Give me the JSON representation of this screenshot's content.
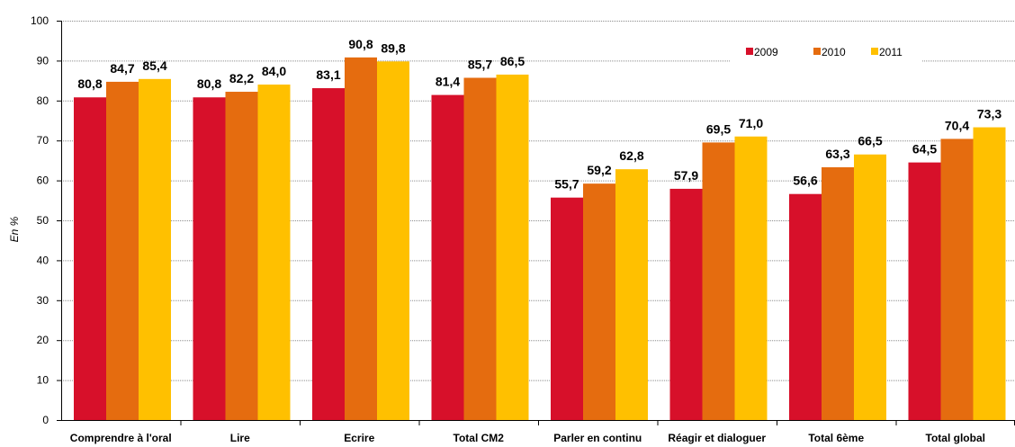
{
  "chart_data": {
    "type": "bar",
    "ylabel": "En %",
    "ylim": [
      0,
      100
    ],
    "yticks": [
      0,
      10,
      20,
      30,
      40,
      50,
      60,
      70,
      80,
      90,
      100
    ],
    "grid": true,
    "legend_position": "top-right",
    "categories": [
      "Comprendre à l'oral",
      "Lire",
      "Ecrire",
      "Total CM2",
      "Parler en continu",
      "Réagir et dialoguer",
      "Total 6ème",
      "Total global"
    ],
    "series": [
      {
        "name": "2009",
        "color": "#d7102a",
        "values": [
          80.8,
          80.8,
          83.1,
          81.4,
          55.7,
          57.9,
          56.6,
          64.5
        ],
        "labels": [
          "80,8",
          "80,8",
          "83,1",
          "81,4",
          "55,7",
          "57,9",
          "56,6",
          "64,5"
        ]
      },
      {
        "name": "2010",
        "color": "#e56c0f",
        "values": [
          84.7,
          82.2,
          90.8,
          85.7,
          59.2,
          69.5,
          63.3,
          70.4
        ],
        "labels": [
          "84,7",
          "82,2",
          "90,8",
          "85,7",
          "59,2",
          "69,5",
          "63,3",
          "70,4"
        ]
      },
      {
        "name": "2011",
        "color": "#ffc000",
        "values": [
          85.4,
          84.0,
          89.8,
          86.5,
          62.8,
          71.0,
          66.5,
          73.3
        ],
        "labels": [
          "85,4",
          "84,0",
          "89,8",
          "86,5",
          "62,8",
          "71,0",
          "66,5",
          "73,3"
        ]
      }
    ]
  }
}
